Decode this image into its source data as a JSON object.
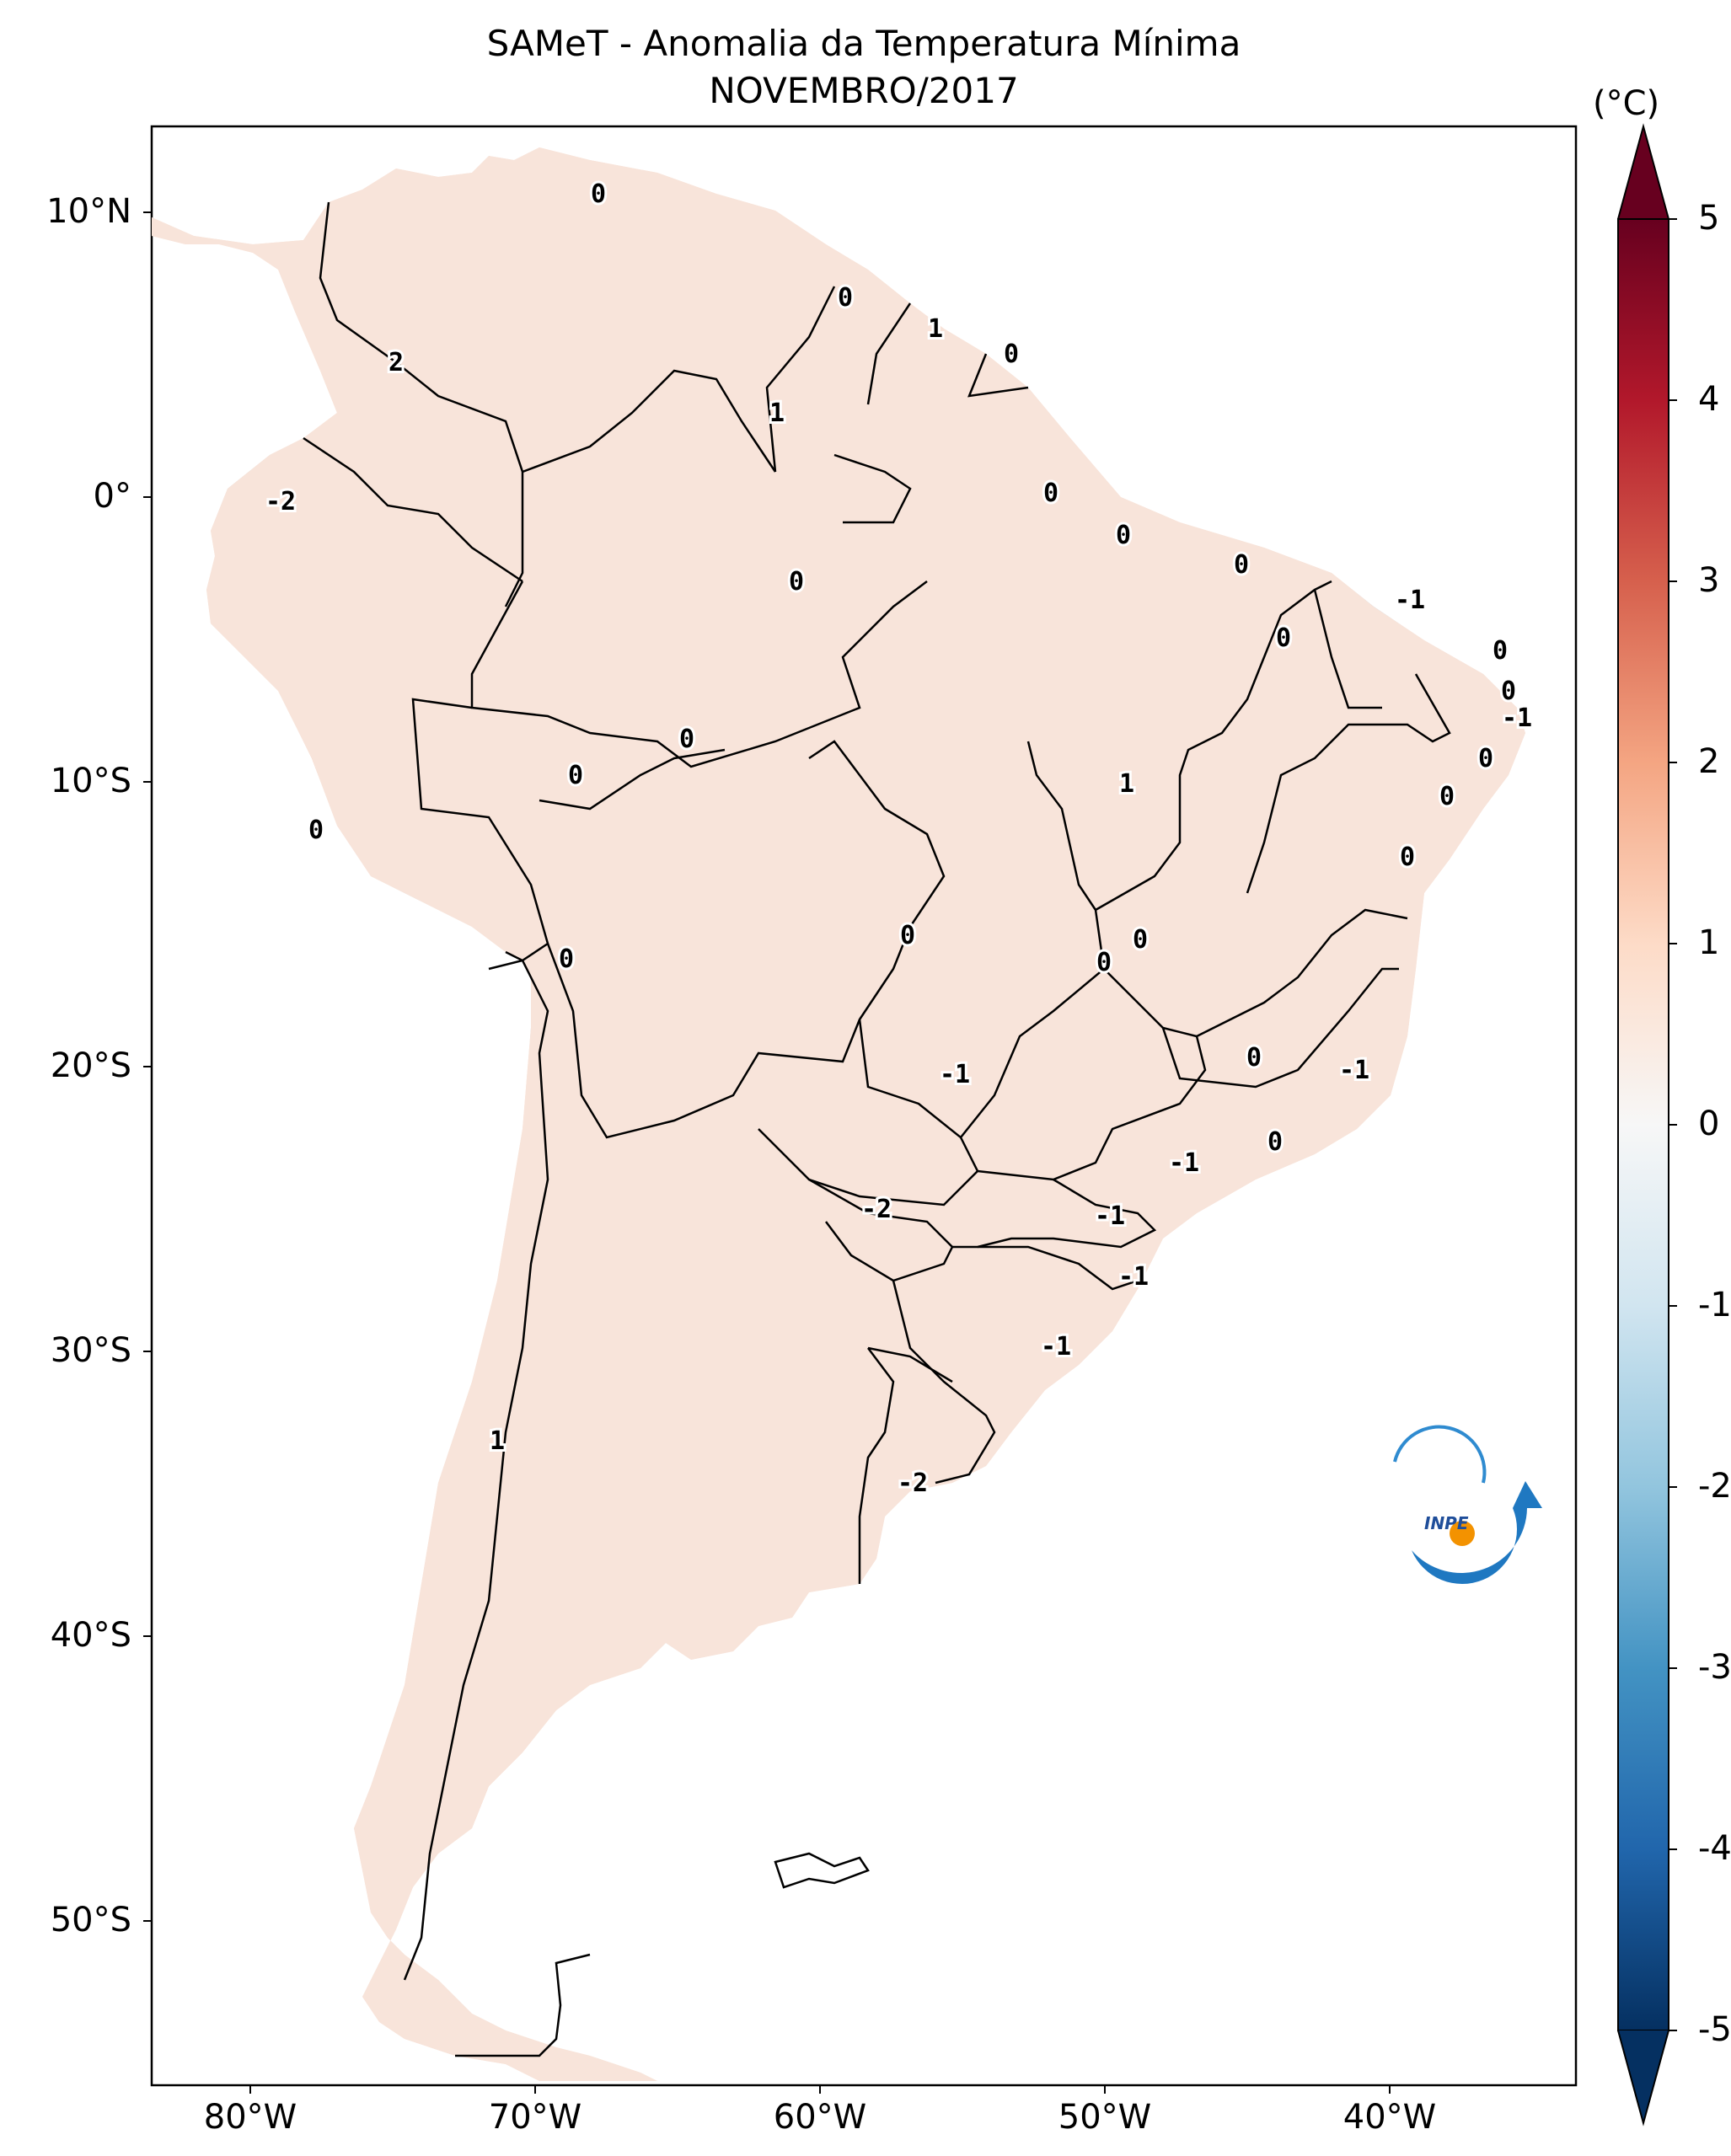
{
  "title": "SAMeT - Anomalia da Temperatura Mínima",
  "subtitle": "NOVEMBRO/2017",
  "colorbar": {
    "unit": "(°C)",
    "ticks": [
      "5",
      "4",
      "3",
      "2",
      "1",
      "0",
      "-1",
      "-2",
      "-3",
      "-4",
      "-5"
    ],
    "range": [
      -5,
      5
    ],
    "colors": [
      "#053061",
      "#2166ac",
      "#4393c3",
      "#92c5de",
      "#d1e5f0",
      "#f7f7f7",
      "#fddbc7",
      "#f4a582",
      "#d6604d",
      "#b2182b",
      "#67001f"
    ]
  },
  "axes": {
    "lat_labels": [
      "10°N",
      "0°",
      "10°S",
      "20°S",
      "30°S",
      "40°S",
      "50°S"
    ],
    "lon_labels": [
      "80°W",
      "70°W",
      "60°W",
      "50°W",
      "40°W"
    ]
  },
  "contour_labels": [
    "0",
    "0",
    "1",
    "0",
    "2",
    "1",
    "-2",
    "0",
    "0",
    "0",
    "0",
    "-1",
    "0",
    "0",
    "0",
    "-1",
    "0",
    "1",
    "0",
    "0",
    "0",
    "0",
    "0",
    "0",
    "0",
    "0",
    "0",
    "0",
    "-1",
    "-1",
    "0",
    "-2",
    "-1",
    "-1",
    "-1",
    "1",
    "-1",
    "-2"
  ],
  "logo": {
    "text": "INPE"
  }
}
